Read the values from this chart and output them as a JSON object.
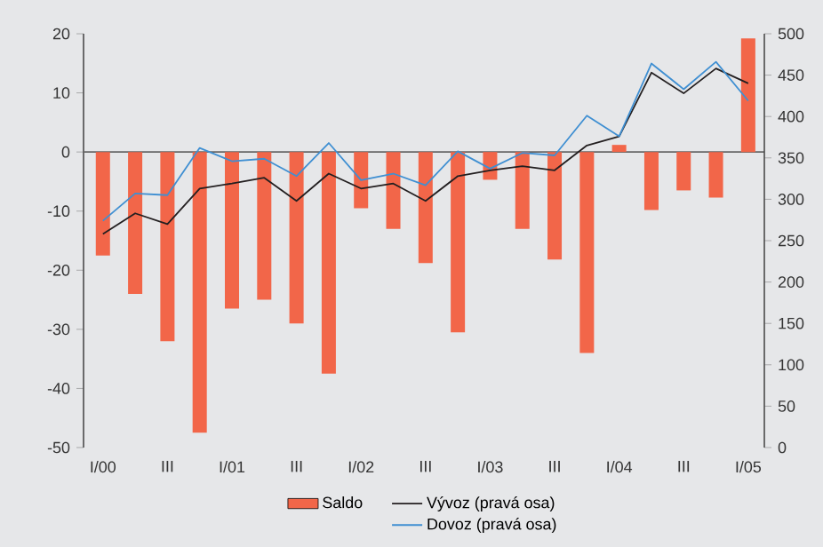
{
  "chart_data": {
    "type": "bar",
    "categories": [
      "I/00",
      null,
      "III",
      null,
      "I/01",
      null,
      "III",
      null,
      "I/02",
      null,
      "III",
      null,
      "I/03",
      null,
      "III",
      null,
      "I/04",
      null,
      "III",
      null,
      "I/05"
    ],
    "series": [
      {
        "name": "Saldo",
        "color": "#f26649",
        "values": [
          -17.5,
          -24,
          -32,
          -47.5,
          -26.5,
          -25,
          -29,
          -37.5,
          -9.5,
          -13,
          -18.8,
          -30.5,
          -4.7,
          -13,
          -18.2,
          -34,
          1.2,
          -9.8,
          -6.5,
          -7.7,
          19.2
        ]
      },
      {
        "name": "Vývoz (pravá osa)",
        "type": "line",
        "axis": "y2",
        "color": "#231f20",
        "values": [
          258,
          283,
          270,
          313,
          319,
          326,
          298,
          331,
          313,
          319,
          298,
          328,
          335,
          340,
          335,
          365,
          376,
          453,
          428,
          458,
          440
        ]
      },
      {
        "name": "Dovoz (pravá osa)",
        "type": "line",
        "axis": "y2",
        "color": "#3f8fd2",
        "values": [
          274,
          307,
          305,
          362,
          346,
          349,
          328,
          368,
          323,
          331,
          317,
          358,
          337,
          356,
          353,
          401,
          376,
          464,
          433,
          466,
          419
        ]
      }
    ],
    "ylim": [
      -50,
      20
    ],
    "yticks": [
      -50,
      -40,
      -30,
      -20,
      -10,
      0,
      10,
      20
    ],
    "y2lim": [
      0,
      500
    ],
    "y2ticks": [
      0,
      50,
      100,
      150,
      200,
      250,
      300,
      350,
      400,
      450,
      500
    ],
    "legend": "bottom"
  }
}
